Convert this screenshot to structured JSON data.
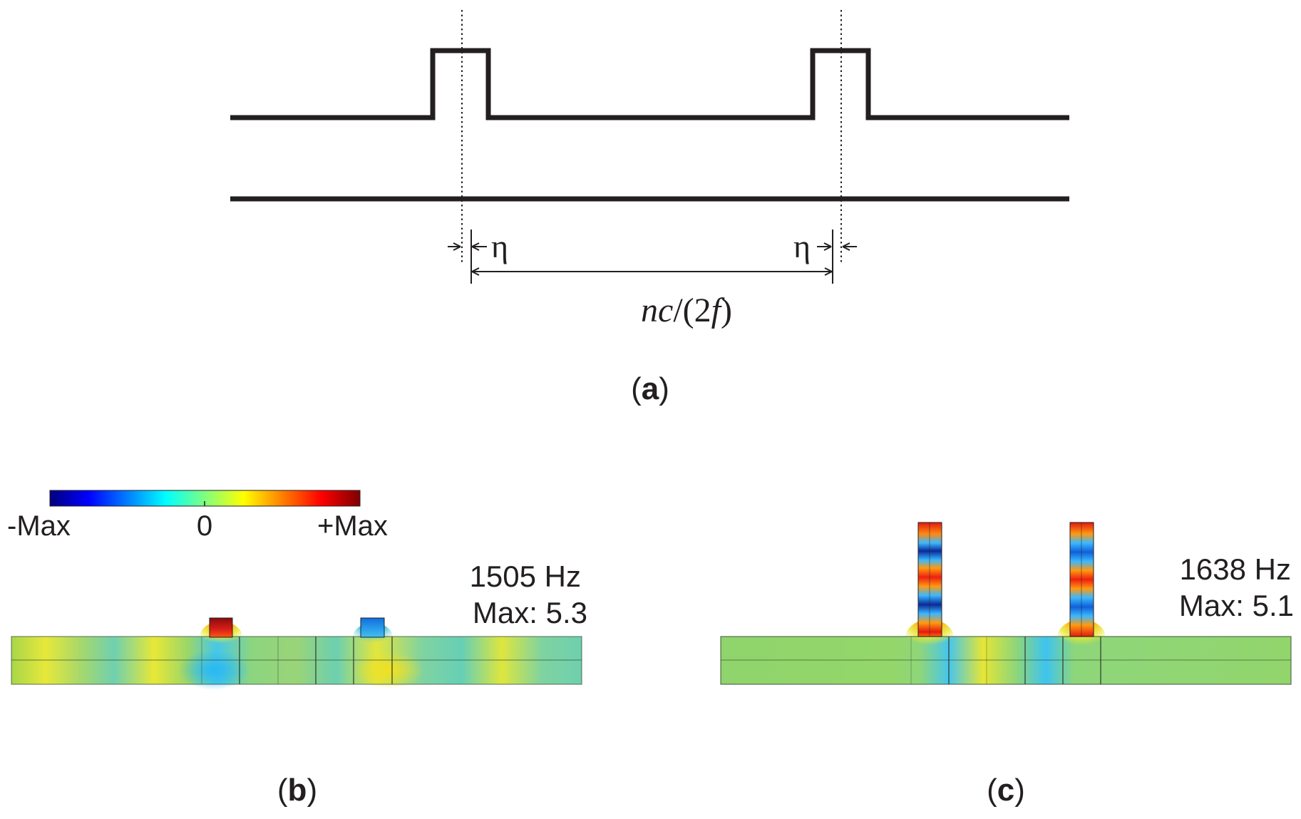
{
  "panel_a": {
    "eta_left": "η",
    "eta_right": "η",
    "spacing_label": {
      "n": "n",
      "c": "c",
      "mid": "/(2",
      "f": "f",
      "close": ")"
    },
    "caption": {
      "open": "(",
      "letter": "a",
      "close": ")"
    }
  },
  "colorbar": {
    "min_label": "-Max",
    "mid_label": "0",
    "max_label": "+Max",
    "colors": [
      "#00007f",
      "#0000ff",
      "#007fff",
      "#00ffff",
      "#7fff7f",
      "#ffff00",
      "#ff7f00",
      "#ff0000",
      "#7f0000"
    ]
  },
  "panel_b": {
    "frequency": "1505 Hz",
    "max_label": "Max: 5.3",
    "caption": {
      "open": "(",
      "letter": "b",
      "close": ")"
    }
  },
  "panel_c": {
    "frequency": "1638 Hz",
    "max_label": "Max: 5.1",
    "caption": {
      "open": "(",
      "letter": "c",
      "close": ")"
    }
  }
}
